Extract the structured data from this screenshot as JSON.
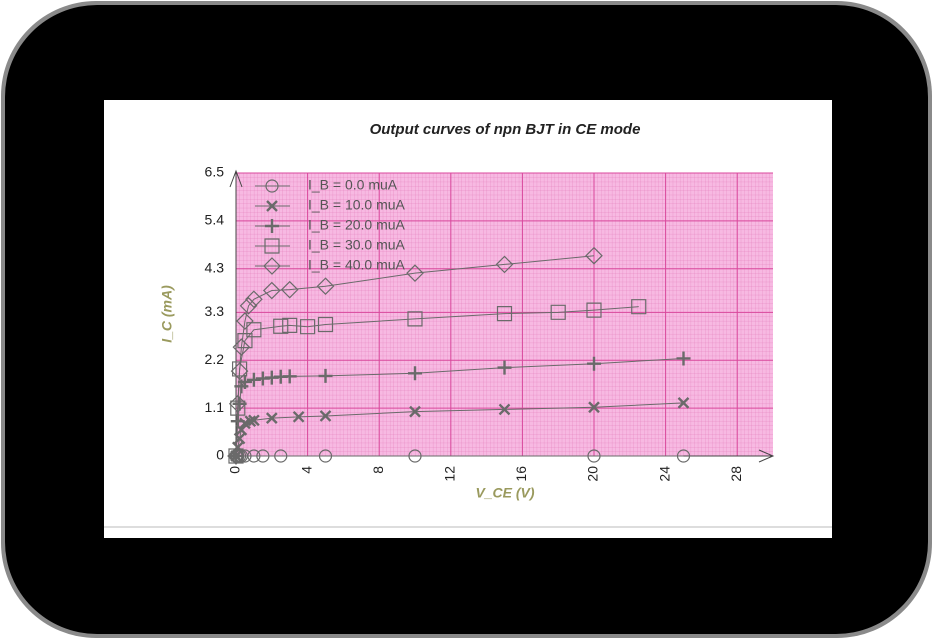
{
  "chart_data": {
    "type": "line",
    "title": "Output curves of npn BJT in CE mode",
    "x_label": "V_CE (V)",
    "y_label": "I_C (mA)",
    "xlim": [
      0,
      30
    ],
    "xticks": [
      0,
      4,
      8,
      12,
      16,
      20,
      24,
      28
    ],
    "ylim": [
      0,
      6.5
    ],
    "yticks": [
      0,
      1.1,
      2.2,
      3.3,
      4.3,
      5.4,
      6.5
    ],
    "grid": true,
    "legend": "upper left",
    "background": "#f7b9e2",
    "grid_color": "#d9489c",
    "series": [
      {
        "name": "I_B = 0.0 muA",
        "marker": "circle",
        "color": "#6a6a6a",
        "x": [
          0,
          0.05,
          0.1,
          0.2,
          0.3,
          0.5,
          1,
          1.5,
          2.5,
          5,
          10,
          20,
          25
        ],
        "values": [
          0,
          0,
          0,
          0,
          0,
          0,
          0,
          0,
          0,
          0,
          0,
          0,
          0
        ]
      },
      {
        "name": "I_B = 10.0 muA",
        "marker": "x",
        "color": "#6a6a6a",
        "x": [
          0,
          0.1,
          0.2,
          0.3,
          0.5,
          0.8,
          1,
          2,
          3.5,
          5,
          10,
          15,
          20,
          25
        ],
        "values": [
          0,
          0.2,
          0.4,
          0.6,
          0.75,
          0.8,
          0.82,
          0.87,
          0.9,
          0.92,
          1.02,
          1.07,
          1.12,
          1.22
        ]
      },
      {
        "name": "I_B = 20.0 muA",
        "marker": "plus",
        "color": "#6a6a6a",
        "x": [
          0,
          0.1,
          0.2,
          0.3,
          0.5,
          1,
          1.5,
          2,
          2.5,
          3,
          5,
          10,
          15,
          20,
          25
        ],
        "values": [
          0,
          0.8,
          1.2,
          1.6,
          1.7,
          1.75,
          1.78,
          1.8,
          1.82,
          1.83,
          1.84,
          1.9,
          2.03,
          2.12,
          2.24
        ]
      },
      {
        "name": "I_B = 30.0 muA",
        "marker": "square",
        "color": "#6a6a6a",
        "x": [
          0,
          0.1,
          0.2,
          0.5,
          1,
          2.5,
          3,
          4,
          5,
          10,
          15,
          18,
          20,
          22.5
        ],
        "values": [
          0,
          1.1,
          2.0,
          2.65,
          2.9,
          2.98,
          3.0,
          2.97,
          3.02,
          3.15,
          3.27,
          3.3,
          3.35,
          3.43
        ]
      },
      {
        "name": "I_B = 40.0 muA",
        "marker": "diamond",
        "color": "#6a6a6a",
        "x": [
          0,
          0.1,
          0.2,
          0.3,
          0.5,
          0.7,
          1,
          2,
          3,
          5,
          10,
          15,
          20
        ],
        "values": [
          0,
          1.2,
          1.95,
          2.5,
          3.1,
          3.45,
          3.6,
          3.8,
          3.82,
          3.9,
          4.2,
          4.4,
          4.6
        ]
      }
    ]
  }
}
